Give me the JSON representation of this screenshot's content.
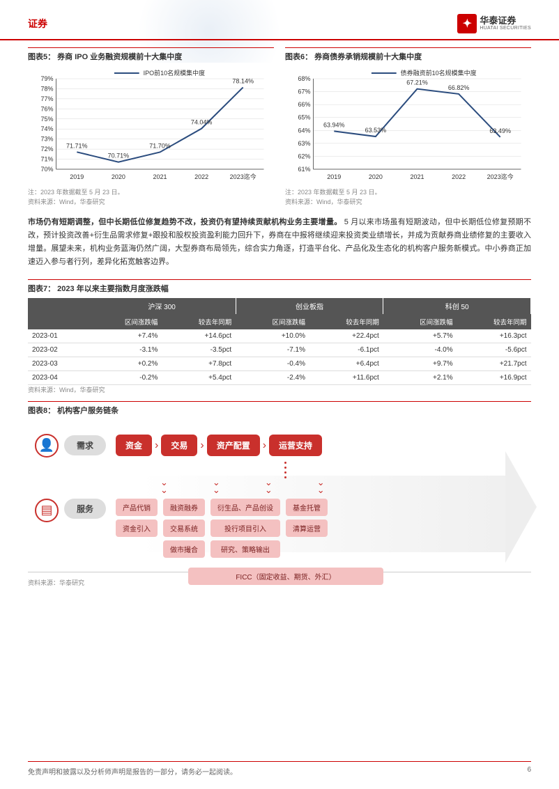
{
  "header": {
    "category": "证券",
    "logo_cn": "华泰证券",
    "logo_en": "HUATAI SECURITIES"
  },
  "chart5": {
    "title": "图表5： 券商 IPO 业务融资规模前十大集中度",
    "type": "line",
    "legend": "IPO前10名规模集中度",
    "categories": [
      "2019",
      "2020",
      "2021",
      "2022",
      "2023迄今"
    ],
    "values": [
      71.71,
      70.71,
      71.7,
      74.04,
      78.14
    ],
    "labels": [
      "71.71%",
      "70.71%",
      "71.70%",
      "74.04%",
      "78.14%"
    ],
    "ylim": [
      70,
      79
    ],
    "ytick_step": 1,
    "ytick_labels": [
      "70%",
      "71%",
      "72%",
      "73%",
      "74%",
      "75%",
      "76%",
      "77%",
      "78%",
      "79%"
    ],
    "line_color": "#2b4c7e",
    "grid_color": "#d9d9d9",
    "axis_color": "#666666",
    "text_color": "#333333",
    "label_fontsize": 9,
    "note": "注：2023 年数据截至 5 月 23 日。",
    "source": "资料来源：Wind，华泰研究"
  },
  "chart6": {
    "title": "图表6： 券商债券承销规模前十大集中度",
    "type": "line",
    "legend": "债券融资前10名规模集中度",
    "categories": [
      "2019",
      "2020",
      "2021",
      "2022",
      "2023迄今"
    ],
    "values": [
      63.94,
      63.53,
      67.21,
      66.82,
      63.49
    ],
    "labels": [
      "63.94%",
      "63.53%",
      "67.21%",
      "66.82%",
      "63.49%"
    ],
    "ylim": [
      61,
      68
    ],
    "ytick_step": 1,
    "ytick_labels": [
      "61%",
      "62%",
      "63%",
      "64%",
      "65%",
      "66%",
      "67%",
      "68%"
    ],
    "line_color": "#2b4c7e",
    "grid_color": "#d9d9d9",
    "axis_color": "#666666",
    "text_color": "#333333",
    "label_fontsize": 9,
    "note": "注：2023 年数据截至 5 月 23 日。",
    "source": "资料来源：Wind，华泰研究"
  },
  "paragraph": {
    "bold": "市场仍有短期调整，但中长期低位修复趋势不改，投资仍有望持续贡献机构业务主要增量。",
    "rest": "5 月以来市场虽有短期波动，但中长期低位修复预期不改，预计投资改善+衍生品需求修复+跟投和股权投资盈利能力回升下，券商在中报将继续迎来投资类业绩增长，并成为贡献券商业绩修复的主要收入增量。展望未来，机构业务蓝海仍然广阔，大型券商布局领先，综合实力角逐，打造平台化、产品化及生态化的机构客户服务新模式。中小券商正加速迈入参与者行列，差异化拓宽触客边界。"
  },
  "table7": {
    "title": "图表7： 2023 年以来主要指数月度涨跌幅",
    "groups": [
      "",
      "沪深 300",
      "创业板指",
      "科创 50"
    ],
    "subheaders": [
      "",
      "区间涨跌幅",
      "较去年同期",
      "区间涨跌幅",
      "较去年同期",
      "区间涨跌幅",
      "较去年同期"
    ],
    "rows": [
      [
        "2023-01",
        "+7.4%",
        "+14.6pct",
        "+10.0%",
        "+22.4pct",
        "+5.7%",
        "+16.3pct"
      ],
      [
        "2023-02",
        "-3.1%",
        "-3.5pct",
        "-7.1%",
        "-6.1pct",
        "-4.0%",
        "-5.6pct"
      ],
      [
        "2023-03",
        "+0.2%",
        "+7.8pct",
        "-0.4%",
        "+6.4pct",
        "+9.7%",
        "+21.7pct"
      ],
      [
        "2023-04",
        "-0.2%",
        "+5.4pct",
        "-2.4%",
        "+11.6pct",
        "+2.1%",
        "+16.9pct"
      ]
    ],
    "source": "资料来源：Wind，华泰研究",
    "header_bg": "#555555",
    "header_color": "#ffffff",
    "border_color": "#dddddd"
  },
  "fig8": {
    "title": "图表8： 机构客户服务链条",
    "demand_label": "需求",
    "service_label": "服务",
    "chain": [
      "资金",
      "交易",
      "资产配置",
      "运营支持"
    ],
    "service_cols": [
      [
        "产品代销",
        "资金引入"
      ],
      [
        "融资融券",
        "交易系统",
        "做市撮合"
      ],
      [
        "衍生品、产品创设",
        "投行项目引入",
        "研究、策略输出"
      ],
      [
        "基金托管",
        "清算运营"
      ]
    ],
    "ficc_row": "FICC（固定收益、期货、外汇）",
    "chain_box_bg": "#c9302c",
    "chain_box_color": "#ffffff",
    "service_box_bg": "#f4c1c1",
    "service_box_color": "#7a2020",
    "label_pill_bg": "#dddddd",
    "source": "资料来源：华泰研究"
  },
  "footer": {
    "disclaimer": "免责声明和披露以及分析师声明是报告的一部分，请务必一起阅读。",
    "page": "6"
  }
}
